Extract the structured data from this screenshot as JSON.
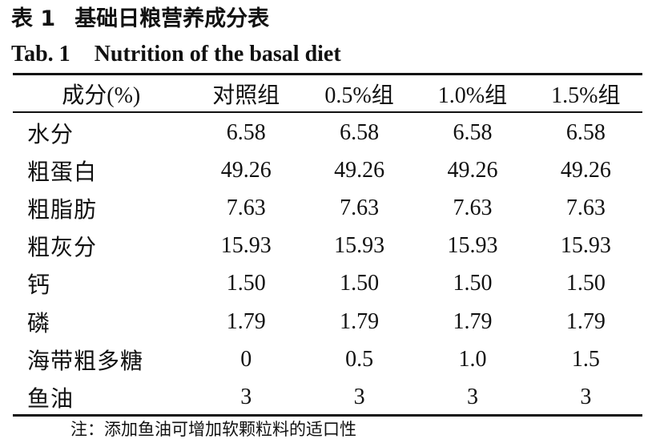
{
  "caption_cn": {
    "table_no": "表 1",
    "title": "基础日粮营养成分表"
  },
  "caption_en": {
    "table_no": "Tab. 1",
    "title": "Nutrition of the basal diet"
  },
  "table": {
    "headers": [
      "成分(%)",
      "对照组",
      "0.5%组",
      "1.0%组",
      "1.5%组"
    ],
    "rows": [
      {
        "name": "水分",
        "values": [
          "6.58",
          "6.58",
          "6.58",
          "6.58"
        ]
      },
      {
        "name": "粗蛋白",
        "values": [
          "49.26",
          "49.26",
          "49.26",
          "49.26"
        ]
      },
      {
        "name": "粗脂肪",
        "values": [
          "7.63",
          "7.63",
          "7.63",
          "7.63"
        ]
      },
      {
        "name": "粗灰分",
        "values": [
          "15.93",
          "15.93",
          "15.93",
          "15.93"
        ]
      },
      {
        "name": "钙",
        "values": [
          "1.50",
          "1.50",
          "1.50",
          "1.50"
        ]
      },
      {
        "name": "磷",
        "values": [
          "1.79",
          "1.79",
          "1.79",
          "1.79"
        ]
      },
      {
        "name": "海带粗多糖",
        "values": [
          "0",
          "0.5",
          "1.0",
          "1.5"
        ]
      },
      {
        "name": "鱼油",
        "values": [
          "3",
          "3",
          "3",
          "3"
        ]
      }
    ]
  },
  "note": "注：添加鱼油可增加软颗粒料的适口性"
}
